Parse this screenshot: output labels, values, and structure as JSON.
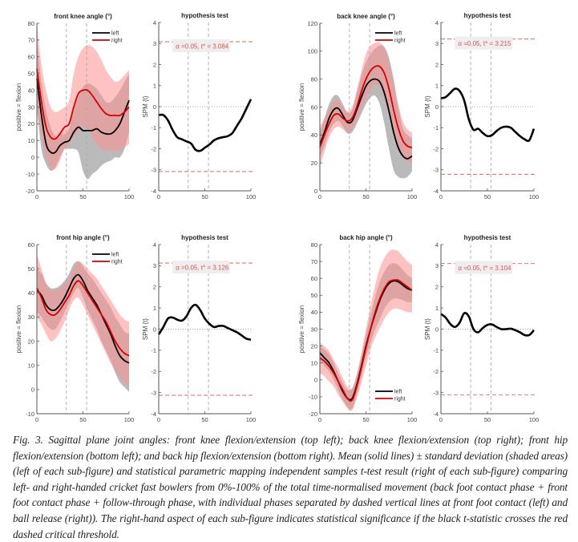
{
  "chart_data": [
    {
      "type": "line",
      "id": "front-knee",
      "title": "front knee angle (°)",
      "ylabel": "positive = flexion",
      "xlabel": "",
      "xlim": [
        0,
        100
      ],
      "ylim": [
        -20,
        80
      ],
      "xticks": [
        0,
        50,
        100
      ],
      "yticks": [
        -20,
        -10,
        0,
        10,
        20,
        30,
        40,
        50,
        60,
        70,
        80
      ],
      "phase_lines": [
        32,
        54
      ],
      "legend": {
        "position": "top-right",
        "entries": [
          "left",
          "right"
        ]
      },
      "x": [
        0,
        5,
        10,
        15,
        20,
        25,
        30,
        35,
        40,
        45,
        50,
        55,
        60,
        65,
        70,
        75,
        80,
        85,
        90,
        95,
        100
      ],
      "series": [
        {
          "name": "left",
          "color": "#000000",
          "mean": [
            47,
            25,
            8,
            3,
            3,
            7,
            9,
            10,
            15,
            18,
            16,
            16,
            16,
            17,
            15,
            14,
            14,
            16,
            20,
            27,
            34
          ],
          "upper": [
            70,
            45,
            28,
            18,
            13,
            14,
            14,
            17,
            28,
            36,
            42,
            44,
            43,
            41,
            37,
            33,
            33,
            36,
            40,
            45,
            50
          ],
          "lower": [
            30,
            5,
            -4,
            -8,
            -6,
            0,
            5,
            5,
            5,
            3,
            -8,
            -13,
            -10,
            -8,
            -5,
            -3,
            -2,
            0,
            0,
            5,
            15
          ]
        },
        {
          "name": "right",
          "color": "#cc0000",
          "mean": [
            53,
            33,
            18,
            12,
            11,
            14,
            18,
            20,
            30,
            38,
            40,
            40,
            37,
            33,
            29,
            26,
            25,
            25,
            25,
            27,
            30
          ],
          "upper": [
            80,
            55,
            40,
            30,
            27,
            28,
            30,
            34,
            50,
            60,
            65,
            67,
            66,
            63,
            58,
            52,
            48,
            45,
            46,
            49,
            52
          ],
          "lower": [
            28,
            12,
            0,
            -6,
            -7,
            -2,
            5,
            8,
            12,
            16,
            18,
            17,
            12,
            8,
            5,
            4,
            4,
            4,
            4,
            6,
            8
          ]
        }
      ]
    },
    {
      "type": "line",
      "id": "front-knee-spm",
      "title": "hypothesis test",
      "ylabel": "SPM {t}",
      "xlim": [
        0,
        100
      ],
      "ylim": [
        -4,
        4
      ],
      "xticks": [
        0,
        50,
        100
      ],
      "yticks": [
        -4,
        -3,
        -2,
        -1,
        0,
        1,
        2,
        3,
        4
      ],
      "phase_lines": [
        32,
        54
      ],
      "threshold": 3.084,
      "annotation": "α =0.05,    t* = 3.084",
      "x": [
        0,
        5,
        10,
        15,
        20,
        25,
        30,
        35,
        40,
        45,
        50,
        55,
        60,
        65,
        70,
        75,
        80,
        85,
        90,
        95,
        100
      ],
      "values": [
        -0.4,
        -0.4,
        -0.65,
        -1.1,
        -1.45,
        -1.55,
        -1.65,
        -1.75,
        -2.05,
        -2.1,
        -1.95,
        -1.8,
        -1.6,
        -1.5,
        -1.45,
        -1.4,
        -1.25,
        -0.9,
        -0.55,
        -0.1,
        0.35
      ]
    },
    {
      "type": "line",
      "id": "back-knee",
      "title": "back knee angle (°)",
      "ylabel": "positive = flexion",
      "xlim": [
        0,
        100
      ],
      "ylim": [
        0,
        120
      ],
      "xticks": [
        0,
        50,
        100
      ],
      "yticks": [
        0,
        20,
        40,
        60,
        80,
        100,
        120
      ],
      "phase_lines": [
        32,
        54
      ],
      "legend": {
        "position": "top-right",
        "entries": [
          "left",
          "right"
        ]
      },
      "x": [
        0,
        5,
        10,
        15,
        20,
        25,
        30,
        35,
        40,
        45,
        50,
        55,
        60,
        65,
        70,
        75,
        80,
        85,
        90,
        95,
        100
      ],
      "series": [
        {
          "name": "left",
          "color": "#000000",
          "mean": [
            33,
            42,
            52,
            58,
            59,
            54,
            49,
            50,
            58,
            67,
            75,
            79,
            80,
            78,
            70,
            57,
            42,
            31,
            25,
            23,
            25
          ],
          "upper": [
            42,
            52,
            62,
            68,
            68,
            62,
            56,
            58,
            70,
            82,
            92,
            98,
            102,
            104,
            103,
            95,
            80,
            60,
            45,
            40,
            38
          ],
          "lower": [
            24,
            32,
            42,
            48,
            50,
            46,
            41,
            42,
            48,
            55,
            62,
            67,
            68,
            62,
            48,
            30,
            15,
            10,
            9,
            10,
            14
          ]
        },
        {
          "name": "right",
          "color": "#cc0000",
          "mean": [
            31,
            40,
            48,
            54,
            55,
            52,
            50,
            52,
            60,
            71,
            80,
            86,
            89,
            89,
            84,
            73,
            58,
            45,
            36,
            32,
            31
          ],
          "upper": [
            46,
            52,
            58,
            64,
            65,
            60,
            57,
            60,
            72,
            86,
            98,
            104,
            106,
            106,
            102,
            92,
            78,
            62,
            50,
            44,
            42
          ],
          "lower": [
            17,
            28,
            38,
            44,
            46,
            44,
            42,
            44,
            50,
            58,
            66,
            72,
            76,
            74,
            66,
            54,
            40,
            30,
            24,
            21,
            20
          ]
        }
      ]
    },
    {
      "type": "line",
      "id": "back-knee-spm",
      "title": "hypothesis test",
      "ylabel": "SPM {t}",
      "xlim": [
        0,
        100
      ],
      "ylim": [
        -4,
        4
      ],
      "xticks": [
        0,
        50,
        100
      ],
      "yticks": [
        -4,
        -3,
        -2,
        -1,
        0,
        1,
        2,
        3,
        4
      ],
      "phase_lines": [
        32,
        54
      ],
      "threshold": 3.215,
      "annotation": "α =0.05,    t* = 3.215",
      "x": [
        0,
        5,
        10,
        15,
        20,
        25,
        30,
        35,
        40,
        45,
        50,
        55,
        60,
        65,
        70,
        75,
        80,
        85,
        90,
        95,
        100
      ],
      "values": [
        0.4,
        0.45,
        0.65,
        0.85,
        0.75,
        0.3,
        -0.6,
        -1.1,
        -1.05,
        -1.25,
        -1.4,
        -1.35,
        -1.15,
        -1.0,
        -0.95,
        -1.0,
        -1.2,
        -1.4,
        -1.55,
        -1.6,
        -1.05
      ]
    },
    {
      "type": "line",
      "id": "front-hip",
      "title": "front hip angle (°)",
      "ylabel": "positive = flexion",
      "xlim": [
        0,
        100
      ],
      "ylim": [
        -10,
        60
      ],
      "xticks": [
        0,
        50,
        100
      ],
      "yticks": [
        -10,
        0,
        10,
        20,
        30,
        40,
        50,
        60
      ],
      "phase_lines": [
        32,
        54
      ],
      "legend": {
        "position": "top-right",
        "entries": [
          "left",
          "right"
        ]
      },
      "x": [
        0,
        5,
        10,
        15,
        20,
        25,
        30,
        35,
        40,
        45,
        50,
        55,
        60,
        65,
        70,
        75,
        80,
        85,
        90,
        95,
        100
      ],
      "series": [
        {
          "name": "left",
          "color": "#000000",
          "mean": [
            41,
            39,
            35,
            33,
            33,
            35,
            38,
            42,
            46,
            47.5,
            45,
            41,
            38,
            35,
            31,
            27,
            23,
            18,
            14,
            12,
            11
          ],
          "upper": [
            50,
            48,
            44,
            42,
            42,
            43,
            45,
            48,
            52,
            53,
            51,
            48,
            46,
            43,
            40,
            37,
            34,
            30,
            27,
            24,
            23
          ],
          "lower": [
            32,
            30,
            27,
            25,
            25,
            28,
            32,
            36,
            40,
            42,
            38,
            33,
            29,
            25,
            20,
            16,
            12,
            7,
            3,
            1,
            -1
          ]
        },
        {
          "name": "right",
          "color": "#cc0000",
          "mean": [
            42,
            38,
            33,
            31,
            31,
            33,
            36,
            39,
            43,
            45,
            43,
            40,
            37,
            34,
            31,
            28,
            24,
            20,
            17,
            15,
            14
          ],
          "upper": [
            56,
            50,
            44,
            41,
            41,
            42,
            44,
            46,
            50,
            53,
            52,
            50,
            48,
            46,
            43,
            40,
            37,
            34,
            31,
            29,
            28
          ],
          "lower": [
            30,
            27,
            23,
            20,
            21,
            24,
            28,
            33,
            37,
            38,
            35,
            31,
            27,
            23,
            19,
            15,
            11,
            8,
            5,
            3,
            1
          ]
        }
      ]
    },
    {
      "type": "line",
      "id": "front-hip-spm",
      "title": "hypothesis test",
      "ylabel": "SPM {t}",
      "xlim": [
        0,
        100
      ],
      "ylim": [
        -4,
        4
      ],
      "xticks": [
        0,
        50,
        100
      ],
      "yticks": [
        -4,
        -3,
        -2,
        -1,
        0,
        1,
        2,
        3,
        4
      ],
      "phase_lines": [
        32,
        54
      ],
      "threshold": 3.126,
      "annotation": "α =0.05,    t* = 3.126",
      "x": [
        0,
        5,
        10,
        15,
        20,
        25,
        30,
        35,
        40,
        45,
        50,
        55,
        60,
        65,
        70,
        75,
        80,
        85,
        90,
        95,
        100
      ],
      "values": [
        -0.25,
        0.1,
        0.5,
        0.55,
        0.45,
        0.4,
        0.6,
        1.0,
        1.15,
        0.9,
        0.5,
        0.25,
        0.1,
        0.15,
        0.15,
        0.05,
        -0.05,
        -0.15,
        -0.3,
        -0.45,
        -0.5
      ]
    },
    {
      "type": "line",
      "id": "back-hip",
      "title": "back hip angle (°)",
      "ylabel": "positive = flexion",
      "xlim": [
        0,
        100
      ],
      "ylim": [
        -20,
        80
      ],
      "xticks": [
        0,
        50,
        100
      ],
      "yticks": [
        -20,
        -10,
        0,
        10,
        20,
        30,
        40,
        50,
        60,
        70,
        80
      ],
      "phase_lines": [
        32,
        54
      ],
      "legend": {
        "position": "bottom-right",
        "entries": [
          "left",
          "right"
        ]
      },
      "x": [
        0,
        5,
        10,
        15,
        20,
        25,
        30,
        35,
        40,
        45,
        50,
        55,
        60,
        65,
        70,
        75,
        80,
        85,
        90,
        95,
        100
      ],
      "series": [
        {
          "name": "left",
          "color": "#000000",
          "mean": [
            16,
            13,
            10,
            5,
            -1,
            -7,
            -11,
            -11,
            -3,
            8,
            20,
            30,
            39,
            47,
            53,
            57,
            58.5,
            58,
            56,
            54,
            53
          ],
          "upper": [
            20,
            18,
            15,
            10,
            4,
            -2,
            -6,
            -5,
            3,
            14,
            27,
            38,
            49,
            58,
            64,
            68,
            69,
            68,
            65,
            62,
            60
          ],
          "lower": [
            12,
            8,
            5,
            0,
            -6,
            -12,
            -16,
            -17,
            -9,
            2,
            13,
            22,
            30,
            36,
            42,
            46,
            48,
            48,
            47,
            46,
            46
          ]
        },
        {
          "name": "right",
          "color": "#cc0000",
          "mean": [
            13,
            11,
            8,
            4,
            -1,
            -6,
            -11,
            -12,
            -4,
            7,
            19,
            30,
            40,
            48,
            54,
            58,
            59,
            59,
            57,
            55,
            53
          ],
          "upper": [
            22,
            20,
            17,
            12,
            7,
            1,
            -4,
            -5,
            3,
            16,
            30,
            44,
            56,
            66,
            72,
            76,
            77,
            76,
            73,
            70,
            68
          ],
          "lower": [
            4,
            2,
            -1,
            -4,
            -9,
            -13,
            -17,
            -18,
            -11,
            -2,
            8,
            18,
            25,
            31,
            36,
            40,
            42,
            42,
            41,
            40,
            40
          ]
        }
      ]
    },
    {
      "type": "line",
      "id": "back-hip-spm",
      "title": "hypothesis test",
      "ylabel": "SPM {t}",
      "xlim": [
        0,
        100
      ],
      "ylim": [
        -4,
        4
      ],
      "xticks": [
        0,
        50,
        100
      ],
      "yticks": [
        -4,
        -3,
        -2,
        -1,
        0,
        1,
        2,
        3,
        4
      ],
      "phase_lines": [
        32,
        54
      ],
      "threshold": 3.104,
      "annotation": "α =0.05,    t* = 3.104",
      "x": [
        0,
        5,
        10,
        15,
        20,
        25,
        30,
        35,
        40,
        45,
        50,
        55,
        60,
        65,
        70,
        75,
        80,
        85,
        90,
        95,
        100
      ],
      "values": [
        0.72,
        0.55,
        0.25,
        0.1,
        0.3,
        0.75,
        0.6,
        0.0,
        -0.15,
        0.05,
        0.2,
        0.22,
        0.1,
        0.0,
        0.0,
        0.02,
        -0.05,
        -0.15,
        -0.28,
        -0.28,
        -0.05
      ]
    }
  ],
  "colors": {
    "left_line": "#000000",
    "right_line": "#d40000",
    "left_band": "#8c8c8c",
    "right_band": "#ff8f8f",
    "threshold": "#d9534f",
    "annotation_bg": "#eeeeee"
  },
  "caption": "Fig. 3. Sagittal plane joint angles: front knee flexion/extension (top left); back knee flexion/extension (top right); front hip flexion/extension (bottom left); and back hip flexion/extension (bottom right). Mean (solid lines) ± standard deviation (shaded areas) (left of each sub-figure) and statistical parametric mapping independent samples t-test result (right of each sub-figure) comparing left- and right-handed cricket fast bowlers from 0%-100% of the total time-normalised movement (back foot contact phase + front foot contact phase + follow-through phase, with individual phases separated by dashed vertical lines at front foot contact (left) and ball release (right)). The right-hand aspect of each sub-figure indicates statistical significance if the black t-statistic crosses the red dashed critical threshold."
}
